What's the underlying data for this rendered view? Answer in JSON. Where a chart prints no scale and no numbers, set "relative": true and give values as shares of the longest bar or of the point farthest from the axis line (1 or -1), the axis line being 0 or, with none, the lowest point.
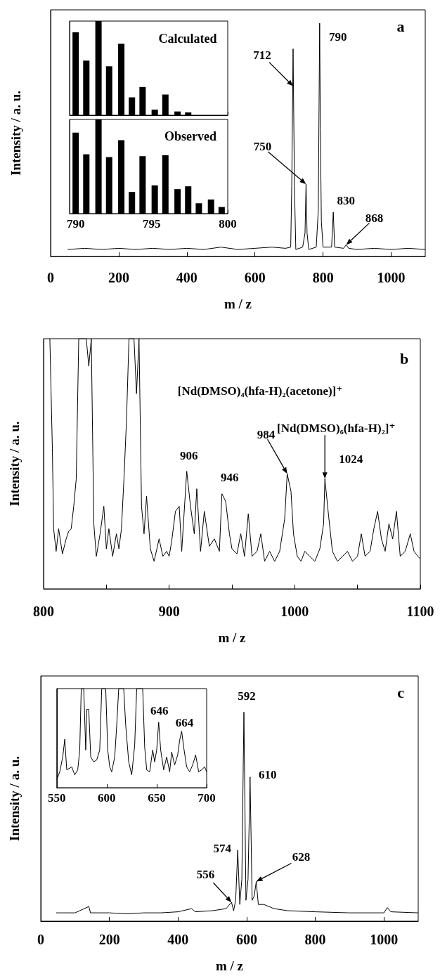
{
  "chart_data": [
    {
      "type": "line",
      "title": "a",
      "xlabel": "m / z",
      "ylabel": "Intensity / a. u.",
      "relative": true,
      "xlim": [
        0,
        1100
      ],
      "xticks": [
        0,
        200,
        400,
        600,
        800,
        1000
      ],
      "annotations": [
        {
          "text": "712",
          "x": 712,
          "y": 0.73
        },
        {
          "text": "750",
          "x": 750,
          "y": 0.31
        },
        {
          "text": "790",
          "x": 790,
          "y": 1.0
        },
        {
          "text": "830",
          "x": 830,
          "y": 0.19
        },
        {
          "text": "868",
          "x": 868,
          "y": 0.05
        }
      ],
      "series": [
        {
          "color": "#000000",
          "x": [
            50,
            100,
            150,
            200,
            250,
            300,
            350,
            400,
            450,
            500,
            550,
            600,
            650,
            690,
            705,
            708,
            712,
            716,
            720,
            740,
            747,
            750,
            753,
            758,
            780,
            786,
            790,
            792,
            795,
            800,
            825,
            830,
            834,
            860,
            868,
            875,
            900,
            950,
            1000,
            1050,
            1100
          ],
          "values": [
            0.03,
            0.035,
            0.03,
            0.035,
            0.03,
            0.035,
            0.03,
            0.035,
            0.03,
            0.04,
            0.03,
            0.035,
            0.04,
            0.035,
            0.04,
            0.3,
            0.89,
            0.3,
            0.03,
            0.04,
            0.1,
            0.31,
            0.1,
            0.03,
            0.04,
            0.2,
            1.0,
            0.55,
            0.15,
            0.04,
            0.04,
            0.19,
            0.04,
            0.035,
            0.05,
            0.035,
            0.03,
            0.035,
            0.03,
            0.035,
            0.03
          ]
        }
      ]
    },
    {
      "type": "bar",
      "title": "Calculated",
      "relative": true,
      "xlim": [
        789.6,
        800
      ],
      "xticks": [
        790,
        795,
        800
      ],
      "tick_labels": false,
      "series": [
        {
          "color": "#000000",
          "x": [
            790.0,
            790.7,
            791.5,
            792.2,
            793.0,
            793.7,
            794.4,
            795.2,
            795.9,
            796.7,
            797.4
          ],
          "values": [
            0.88,
            0.58,
            1.0,
            0.52,
            0.76,
            0.19,
            0.3,
            0.06,
            0.22,
            0.04,
            0.03
          ]
        }
      ]
    },
    {
      "type": "bar",
      "title": "Observed",
      "relative": true,
      "xlim": [
        789.6,
        800
      ],
      "xticks": [
        790,
        795,
        800
      ],
      "series": [
        {
          "color": "#000000",
          "x": [
            790.0,
            790.7,
            791.5,
            792.2,
            793.0,
            793.7,
            794.4,
            795.2,
            795.9,
            796.7,
            797.4,
            798.1,
            798.9,
            799.6
          ],
          "values": [
            0.86,
            0.63,
            1.0,
            0.6,
            0.78,
            0.23,
            0.61,
            0.3,
            0.62,
            0.26,
            0.29,
            0.11,
            0.15,
            0.07
          ]
        }
      ]
    },
    {
      "type": "line",
      "title": "b",
      "xlabel": "m / z",
      "ylabel": "Intensity / a. u.",
      "relative": true,
      "xlim": [
        800,
        1100
      ],
      "xticks": [
        800,
        {
          "value": 850,
          "label": null
        },
        900,
        {
          "value": 950,
          "label": null
        },
        1000,
        {
          "value": 1050,
          "label": null
        },
        1100
      ],
      "annotations": [
        {
          "text": "906",
          "x": 914,
          "y": 0.47
        },
        {
          "text": "946",
          "x": 942,
          "y": 0.38
        },
        "[Nd(DMSO)₄(hfa-H)₂(acetone)]⁺",
        {
          "text": "984",
          "x": 994,
          "y": 0.46
        },
        {
          "text": "[Nd(DMSO)₆(hfa-H)₂]⁺",
          "x": 1024,
          "y": 0.44
        },
        {
          "text": "1024",
          "x": 1024,
          "y": 0.44
        }
      ],
      "series": [
        {
          "color": "#000000",
          "x": [
            805,
            807,
            808,
            810,
            812,
            815,
            818,
            820,
            822,
            824,
            826,
            828,
            834,
            836,
            838,
            840,
            842,
            845,
            848,
            850,
            852,
            855,
            858,
            860,
            862,
            864,
            866,
            868,
            872,
            874,
            876,
            878,
            880,
            882,
            885,
            888,
            892,
            895,
            898,
            900,
            902,
            905,
            908,
            910,
            914,
            917,
            920,
            922,
            925,
            928,
            932,
            936,
            940,
            942,
            945,
            948,
            950,
            954,
            957,
            960,
            963,
            966,
            970,
            973,
            976,
            980,
            984,
            988,
            992,
            994,
            997,
            999,
            1002,
            1005,
            1008,
            1012,
            1016,
            1020,
            1023,
            1024,
            1027,
            1030,
            1034,
            1038,
            1042,
            1046,
            1050,
            1053,
            1056,
            1060,
            1063,
            1066,
            1069,
            1072,
            1075,
            1078,
            1081,
            1084,
            1088,
            1092,
            1095,
            1098,
            1100
          ],
          "values": [
            1,
            0.56,
            0.24,
            0.15,
            0.24,
            0.14,
            0.2,
            0.23,
            0.24,
            0.33,
            0.44,
            1,
            1,
            0.89,
            1,
            0.26,
            0.13,
            0.22,
            0.33,
            0.16,
            0.24,
            0.13,
            0.22,
            0.16,
            0.24,
            0.44,
            0.67,
            1,
            1,
            0.78,
            1,
            0.33,
            0.22,
            0.37,
            0.16,
            0.11,
            0.2,
            0.13,
            0.15,
            0.13,
            0.19,
            0.31,
            0.33,
            0.15,
            0.47,
            0.33,
            0.22,
            0.4,
            0.15,
            0.31,
            0.17,
            0.2,
            0.15,
            0.38,
            0.35,
            0.22,
            0.16,
            0.14,
            0.22,
            0.13,
            0.3,
            0.13,
            0.15,
            0.22,
            0.11,
            0.15,
            0.11,
            0.15,
            0.28,
            0.46,
            0.39,
            0.22,
            0.13,
            0.11,
            0.15,
            0.13,
            0.11,
            0.16,
            0.26,
            0.44,
            0.29,
            0.15,
            0.11,
            0.13,
            0.15,
            0.11,
            0.13,
            0.22,
            0.13,
            0.15,
            0.24,
            0.31,
            0.2,
            0.15,
            0.26,
            0.2,
            0.31,
            0.13,
            0.15,
            0.22,
            0.15,
            0.13,
            0.12
          ]
        }
      ]
    },
    {
      "type": "line",
      "title": "c",
      "xlabel": "m / z",
      "ylabel": "Intensity / a. u.",
      "relative": true,
      "xlim": [
        0,
        1100
      ],
      "xticks": [
        0,
        200,
        400,
        600,
        800,
        1000
      ],
      "annotations": [
        {
          "text": "556",
          "x": 556,
          "y": 0.09
        },
        {
          "text": "574",
          "x": 574,
          "y": 0.34
        },
        {
          "text": "592",
          "x": 592,
          "y": 1.0
        },
        {
          "text": "610",
          "x": 610,
          "y": 0.69
        },
        {
          "text": "628",
          "x": 628,
          "y": 0.19
        }
      ],
      "series": [
        {
          "color": "#000000",
          "x": [
            45,
            100,
            140,
            145,
            200,
            250,
            300,
            350,
            400,
            440,
            450,
            500,
            540,
            556,
            562,
            568,
            574,
            580,
            586,
            592,
            598,
            604,
            610,
            616,
            622,
            628,
            634,
            650,
            680,
            720,
            800,
            900,
            1000,
            1010,
            1020,
            1100
          ],
          "values": [
            0.04,
            0.04,
            0.07,
            0.04,
            0.04,
            0.035,
            0.04,
            0.04,
            0.045,
            0.06,
            0.045,
            0.05,
            0.06,
            0.09,
            0.05,
            0.1,
            0.34,
            0.08,
            0.2,
            1.0,
            0.1,
            0.2,
            0.69,
            0.1,
            0.12,
            0.19,
            0.08,
            0.08,
            0.06,
            0.05,
            0.045,
            0.04,
            0.04,
            0.065,
            0.045,
            0.04
          ]
        }
      ]
    },
    {
      "type": "line",
      "relative": true,
      "xlim": [
        550,
        700
      ],
      "xticks": [
        550,
        600,
        650,
        700
      ],
      "annotations": [
        {
          "text": "646",
          "x": 652,
          "y": 0.66
        },
        {
          "text": "664",
          "x": 675,
          "y": 0.57
        }
      ],
      "series": [
        {
          "color": "#000000",
          "x": [
            550,
            553,
            556,
            558,
            560,
            565,
            568,
            571,
            573,
            574.5,
            577,
            579,
            580,
            582,
            584,
            587,
            590,
            593,
            595,
            599,
            601,
            603,
            605,
            608,
            610,
            612,
            617,
            619,
            622,
            625,
            628,
            630,
            636,
            638,
            640,
            643,
            646,
            648,
            650,
            652,
            654,
            657,
            660,
            663,
            665,
            668,
            671,
            673,
            675,
            677,
            680,
            683,
            686,
            689,
            692,
            695,
            698,
            700
          ],
          "values": [
            0.08,
            0.16,
            0.31,
            0.49,
            0.18,
            0.21,
            0.13,
            0.18,
            0.38,
            1,
            1,
            0.38,
            0.79,
            0.79,
            0.31,
            0.26,
            0.28,
            0.38,
            1,
            1,
            0.38,
            0.21,
            0.16,
            0.31,
            0.63,
            1,
            1,
            0.63,
            0.26,
            0.13,
            0.43,
            1,
            1,
            0.41,
            0.18,
            0.16,
            0.38,
            0.26,
            0.38,
            0.66,
            0.38,
            0.18,
            0.31,
            0.16,
            0.36,
            0.23,
            0.33,
            0.48,
            0.57,
            0.41,
            0.21,
            0.16,
            0.23,
            0.33,
            0.16,
            0.18,
            0.21,
            0.16
          ]
        }
      ]
    }
  ]
}
